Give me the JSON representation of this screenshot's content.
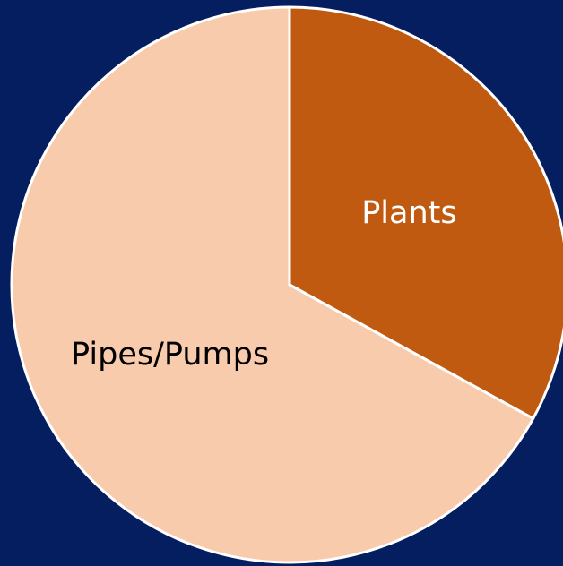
{
  "chart_data": {
    "type": "pie",
    "categories": [
      "Plants",
      "Pipes/Pumps"
    ],
    "values": [
      33,
      67
    ],
    "colors": [
      "#c05a11",
      "#f8cbac"
    ],
    "start_angle": 0,
    "direction": "clockwise"
  }
}
